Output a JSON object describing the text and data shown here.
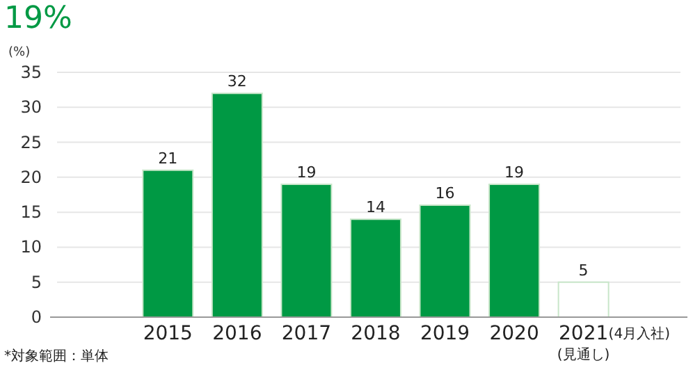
{
  "chart_data": {
    "type": "bar",
    "title": "19%",
    "categories": [
      "2015",
      "2016",
      "2017",
      "2018",
      "2019",
      "2020",
      "2021"
    ],
    "values": [
      21,
      32,
      19,
      14,
      16,
      19,
      5
    ],
    "colors": [
      "#009944",
      "#009944",
      "#009944",
      "#009944",
      "#009944",
      "#009944",
      "#ffffff"
    ],
    "ylabel": "(%)",
    "ylim": [
      0,
      35
    ],
    "yticks": [
      0,
      5,
      10,
      15,
      20,
      25,
      30,
      35
    ],
    "grid": "y",
    "data_labels": true,
    "annotations": [
      "(4月入社)",
      "(見通し)",
      "*対象範囲：単体"
    ]
  }
}
